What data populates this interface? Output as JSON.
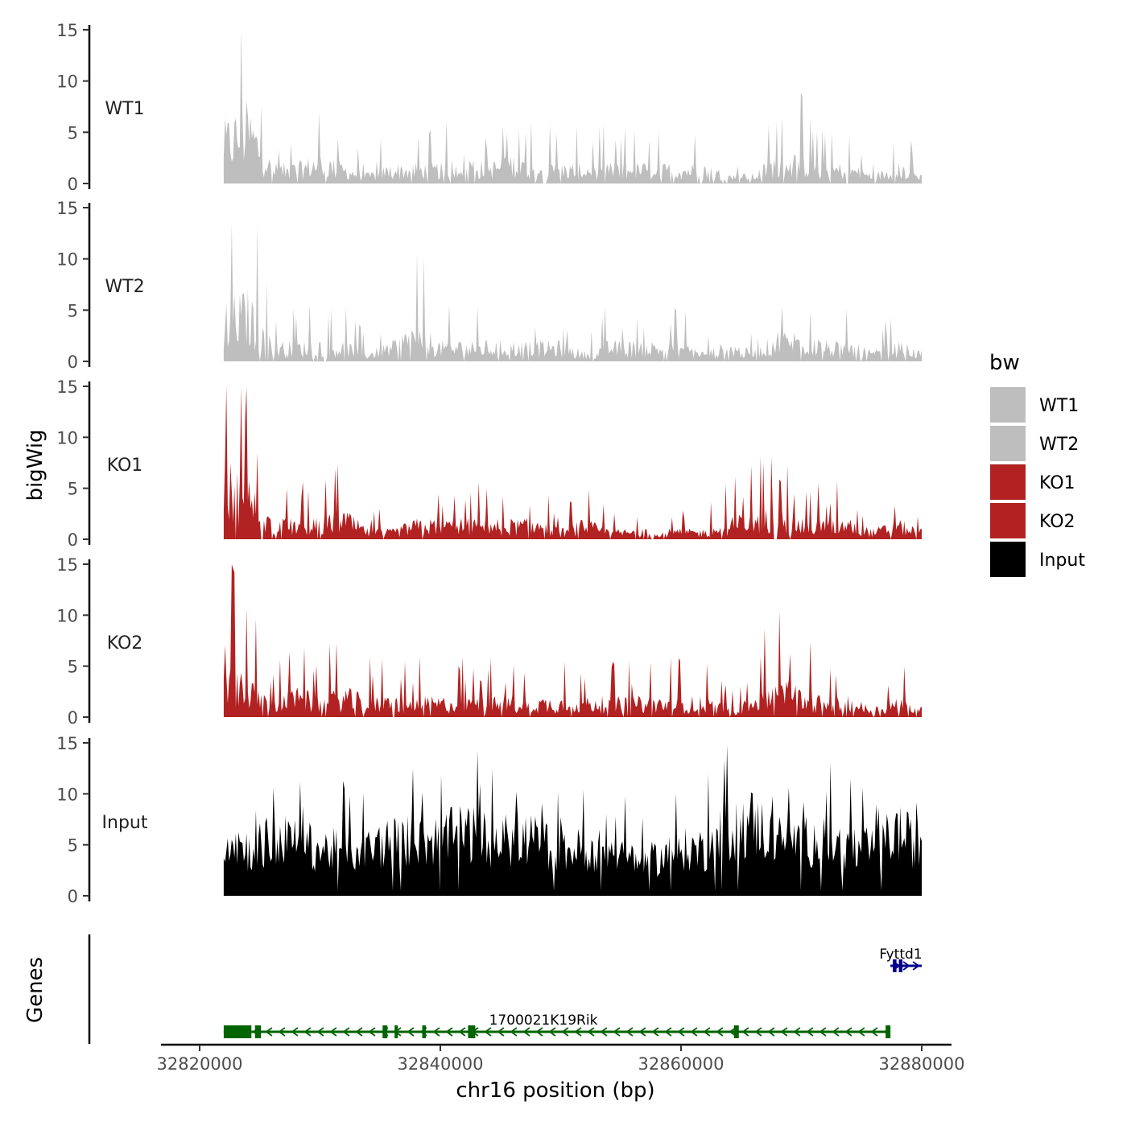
{
  "chart_data": {
    "type": "area",
    "region": {
      "chrom": "chr16",
      "start": 32822000,
      "end": 32880000
    },
    "y_axis_title": "bigWig",
    "ylim": [
      0,
      15
    ],
    "y_ticks": [
      0,
      5,
      10,
      15
    ],
    "x_axis_title": "chr16 position (bp)",
    "x_ticks": [
      32820000,
      32840000,
      32860000,
      32880000
    ],
    "x_tick_labels": [
      "32820000",
      "32840000",
      "32860000",
      "32880000"
    ],
    "legend": {
      "title": "bw",
      "position": "right",
      "entries": [
        {
          "label": "WT1",
          "color": "#bebebe"
        },
        {
          "label": "WT2",
          "color": "#bebebe"
        },
        {
          "label": "KO1",
          "color": "#b22222"
        },
        {
          "label": "KO2",
          "color": "#b22222"
        },
        {
          "label": "Input",
          "color": "#000000"
        }
      ]
    },
    "series": [
      {
        "name": "WT1",
        "color": "#bebebe",
        "x": [
          32822000,
          32824000,
          32826000,
          32828000,
          32830000,
          32832000,
          32834000,
          32836000,
          32838000,
          32840000,
          32842000,
          32844000,
          32846000,
          32848000,
          32850000,
          32852000,
          32854000,
          32856000,
          32858000,
          32860000,
          32862000,
          32864000,
          32866000,
          32868000,
          32870000,
          32872000,
          32874000,
          32876000,
          32878000,
          32880000
        ],
        "values": [
          6,
          8,
          2,
          2,
          3,
          2,
          1,
          2,
          2,
          2,
          3,
          2,
          3,
          2,
          2,
          2,
          2,
          2,
          2,
          2,
          2,
          1,
          1,
          3,
          3,
          2,
          2,
          1,
          2,
          1
        ]
      },
      {
        "name": "WT2",
        "color": "#bebebe",
        "x": [
          32822000,
          32824000,
          32826000,
          32828000,
          32830000,
          32832000,
          32834000,
          32836000,
          32838000,
          32840000,
          32842000,
          32844000,
          32846000,
          32848000,
          32850000,
          32852000,
          32854000,
          32856000,
          32858000,
          32860000,
          32862000,
          32864000,
          32866000,
          32868000,
          32870000,
          32872000,
          32874000,
          32876000,
          32878000,
          32880000
        ],
        "values": [
          6,
          7,
          2,
          2,
          2,
          2,
          1,
          2,
          4,
          2,
          2,
          2,
          2,
          2,
          2,
          1,
          2,
          2,
          2,
          2,
          1,
          2,
          1,
          3,
          3,
          2,
          2,
          1,
          2,
          1
        ]
      },
      {
        "name": "KO1",
        "color": "#b22222",
        "x": [
          32822000,
          32824000,
          32826000,
          32828000,
          32830000,
          32832000,
          32834000,
          32836000,
          32838000,
          32840000,
          32842000,
          32844000,
          32846000,
          32848000,
          32850000,
          32852000,
          32854000,
          32856000,
          32858000,
          32860000,
          32862000,
          32864000,
          32866000,
          32868000,
          32870000,
          32872000,
          32874000,
          32876000,
          32878000,
          32880000
        ],
        "values": [
          8,
          6,
          2,
          2,
          2,
          3,
          1,
          1,
          2,
          2,
          2,
          2,
          2,
          2,
          1,
          2,
          1,
          1,
          1,
          1,
          1,
          2,
          3,
          3,
          2,
          2,
          2,
          1,
          2,
          1
        ]
      },
      {
        "name": "KO2",
        "color": "#b22222",
        "x": [
          32822000,
          32824000,
          32826000,
          32828000,
          32830000,
          32832000,
          32834000,
          32836000,
          32838000,
          32840000,
          32842000,
          32844000,
          32846000,
          32848000,
          32850000,
          32852000,
          32854000,
          32856000,
          32858000,
          32860000,
          32862000,
          32864000,
          32866000,
          32868000,
          32870000,
          32872000,
          32874000,
          32876000,
          32878000,
          32880000
        ],
        "values": [
          8,
          4,
          2,
          3,
          2,
          3,
          2,
          2,
          2,
          2,
          2,
          2,
          2,
          2,
          2,
          2,
          2,
          2,
          2,
          2,
          2,
          1,
          2,
          4,
          3,
          2,
          2,
          1,
          2,
          1
        ]
      },
      {
        "name": "Input",
        "color": "#000000",
        "x": [
          32822000,
          32824000,
          32826000,
          32828000,
          32830000,
          32832000,
          32834000,
          32836000,
          32838000,
          32840000,
          32842000,
          32844000,
          32846000,
          32848000,
          32850000,
          32852000,
          32854000,
          32856000,
          32858000,
          32860000,
          32862000,
          32864000,
          32866000,
          32868000,
          32870000,
          32872000,
          32874000,
          32876000,
          32878000,
          32880000
        ],
        "values": [
          7,
          5,
          6,
          6,
          5,
          5,
          5,
          6,
          6,
          6,
          7,
          6,
          6,
          6,
          5,
          5,
          5,
          4,
          4,
          5,
          5,
          7,
          8,
          6,
          6,
          6,
          5,
          5,
          7,
          5
        ]
      }
    ],
    "genes_track": {
      "axis_title": "Genes",
      "genes": [
        {
          "name": "1700021K19Rik",
          "start": 32822000,
          "end": 32877400,
          "strand": "-",
          "color": "#006400",
          "exons": [
            [
              32822000,
              32824300
            ],
            [
              32824600,
              32825100
            ],
            [
              32835200,
              32835600
            ],
            [
              32836200,
              32836400
            ],
            [
              32838500,
              32838800
            ],
            [
              32842300,
              32842900
            ],
            [
              32864400,
              32864800
            ],
            [
              32877000,
              32877400
            ]
          ]
        },
        {
          "name": "Fyttd1",
          "start": 32877400,
          "end": 32880000,
          "strand": "+",
          "color": "#00008b",
          "exons": [
            [
              32877600,
              32877900
            ],
            [
              32878100,
              32878400
            ]
          ]
        }
      ]
    }
  }
}
